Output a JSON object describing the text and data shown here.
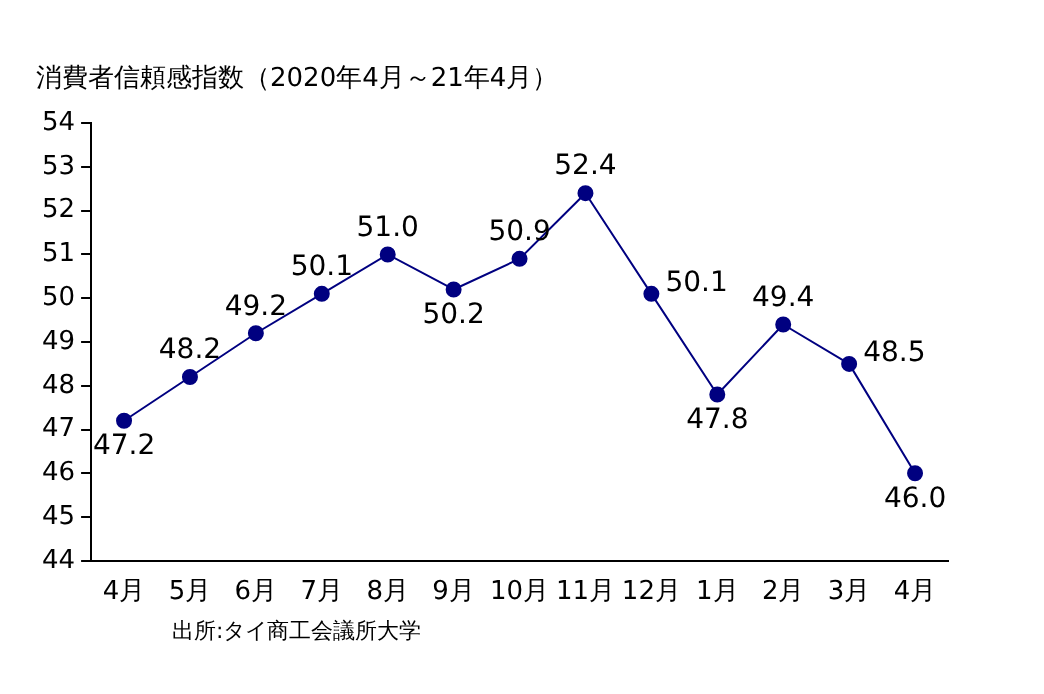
{
  "chart_data": {
    "type": "line",
    "title": "消費者信頼感指数（2020年4月～21年4月）",
    "categories": [
      "4月",
      "5月",
      "6月",
      "7月",
      "8月",
      "9月",
      "10月",
      "11月",
      "12月",
      "1月",
      "2月",
      "3月",
      "4月"
    ],
    "series": [
      {
        "color": "#000080",
        "values": [
          47.2,
          48.2,
          49.2,
          50.1,
          51.0,
          50.2,
          50.9,
          52.4,
          50.1,
          47.8,
          49.4,
          48.5,
          46.0
        ]
      }
    ],
    "value_labels": [
      "47.2",
      "48.2",
      "49.2",
      "50.1",
      "51.0",
      "50.2",
      "50.9",
      "52.4",
      "50.1",
      "47.8",
      "49.4",
      "48.5",
      "46.0"
    ],
    "ylim": [
      44,
      54
    ],
    "yticks": [
      44,
      45,
      46,
      47,
      48,
      49,
      50,
      51,
      52,
      53,
      54
    ],
    "grid": false,
    "legend": false,
    "marker": "circle",
    "line_style": "solid",
    "annotations": [
      "出所:タイ商工会議所大学"
    ]
  }
}
